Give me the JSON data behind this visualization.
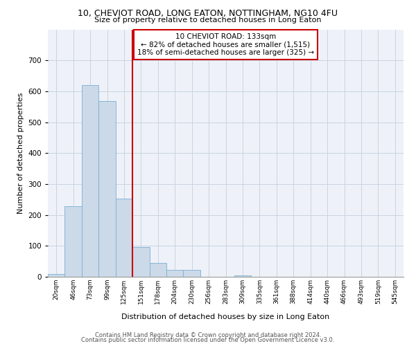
{
  "title1": "10, CHEVIOT ROAD, LONG EATON, NOTTINGHAM, NG10 4FU",
  "title2": "Size of property relative to detached houses in Long Eaton",
  "xlabel": "Distribution of detached houses by size in Long Eaton",
  "ylabel": "Number of detached properties",
  "bar_labels": [
    "20sqm",
    "46sqm",
    "73sqm",
    "99sqm",
    "125sqm",
    "151sqm",
    "178sqm",
    "204sqm",
    "230sqm",
    "256sqm",
    "283sqm",
    "309sqm",
    "335sqm",
    "361sqm",
    "388sqm",
    "414sqm",
    "440sqm",
    "466sqm",
    "493sqm",
    "519sqm",
    "545sqm"
  ],
  "bar_values": [
    10,
    228,
    620,
    568,
    252,
    97,
    44,
    22,
    22,
    0,
    0,
    5,
    0,
    0,
    0,
    0,
    0,
    0,
    0,
    0,
    0
  ],
  "bar_color": "#ccd9e8",
  "bar_edgecolor": "#7bafd4",
  "vline_color": "#cc0000",
  "annotation_line1": "10 CHEVIOT ROAD: 133sqm",
  "annotation_line2": "← 82% of detached houses are smaller (1,515)",
  "annotation_line3": "18% of semi-detached houses are larger (325) →",
  "annotation_box_edgecolor": "#cc0000",
  "ylim": [
    0,
    800
  ],
  "yticks": [
    0,
    100,
    200,
    300,
    400,
    500,
    600,
    700,
    800
  ],
  "grid_color": "#c8d4e0",
  "background_color": "#eef2f8",
  "footer1": "Contains HM Land Registry data © Crown copyright and database right 2024.",
  "footer2": "Contains public sector information licensed under the Open Government Licence v3.0."
}
